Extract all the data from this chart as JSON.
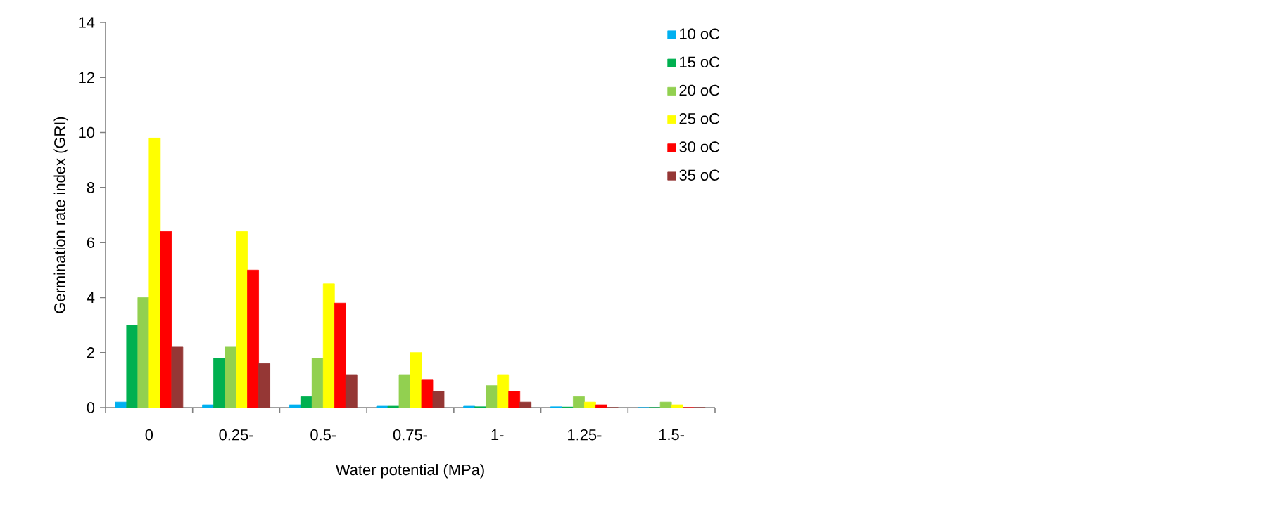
{
  "chart_data": {
    "type": "bar",
    "xlabel": "Water potential (MPa)",
    "ylabel": "Germination rate index (GRI)",
    "categories": [
      "0",
      "0.25-",
      "0.5-",
      "0.75-",
      "1-",
      "1.25-",
      "1.5-"
    ],
    "ylim": [
      0,
      14
    ],
    "yticks": [
      0,
      2,
      4,
      6,
      8,
      10,
      12,
      14
    ],
    "legend": "top right",
    "series": [
      {
        "name": "10 oC",
        "color": "#00b0f0",
        "values": [
          0.2,
          0.1,
          0.1,
          0.05,
          0.05,
          0.03,
          0
        ]
      },
      {
        "name": "15 oC",
        "color": "#00b050",
        "values": [
          3.0,
          1.8,
          0.4,
          0.05,
          0.03,
          0.02,
          0
        ]
      },
      {
        "name": "20 oC",
        "color": "#92d050",
        "values": [
          4.0,
          2.2,
          1.8,
          1.2,
          0.8,
          0.4,
          0.2
        ]
      },
      {
        "name": "25 oC",
        "color": "#ffff00",
        "values": [
          9.8,
          6.4,
          4.5,
          2.0,
          1.2,
          0.2,
          0.1
        ]
      },
      {
        "name": "30 oC",
        "color": "#ff0000",
        "values": [
          6.4,
          5.0,
          3.8,
          1.0,
          0.6,
          0.1,
          0
        ]
      },
      {
        "name": "35 oC",
        "color": "#953735",
        "values": [
          2.2,
          1.6,
          1.2,
          0.6,
          0.2,
          0,
          0
        ]
      }
    ]
  }
}
